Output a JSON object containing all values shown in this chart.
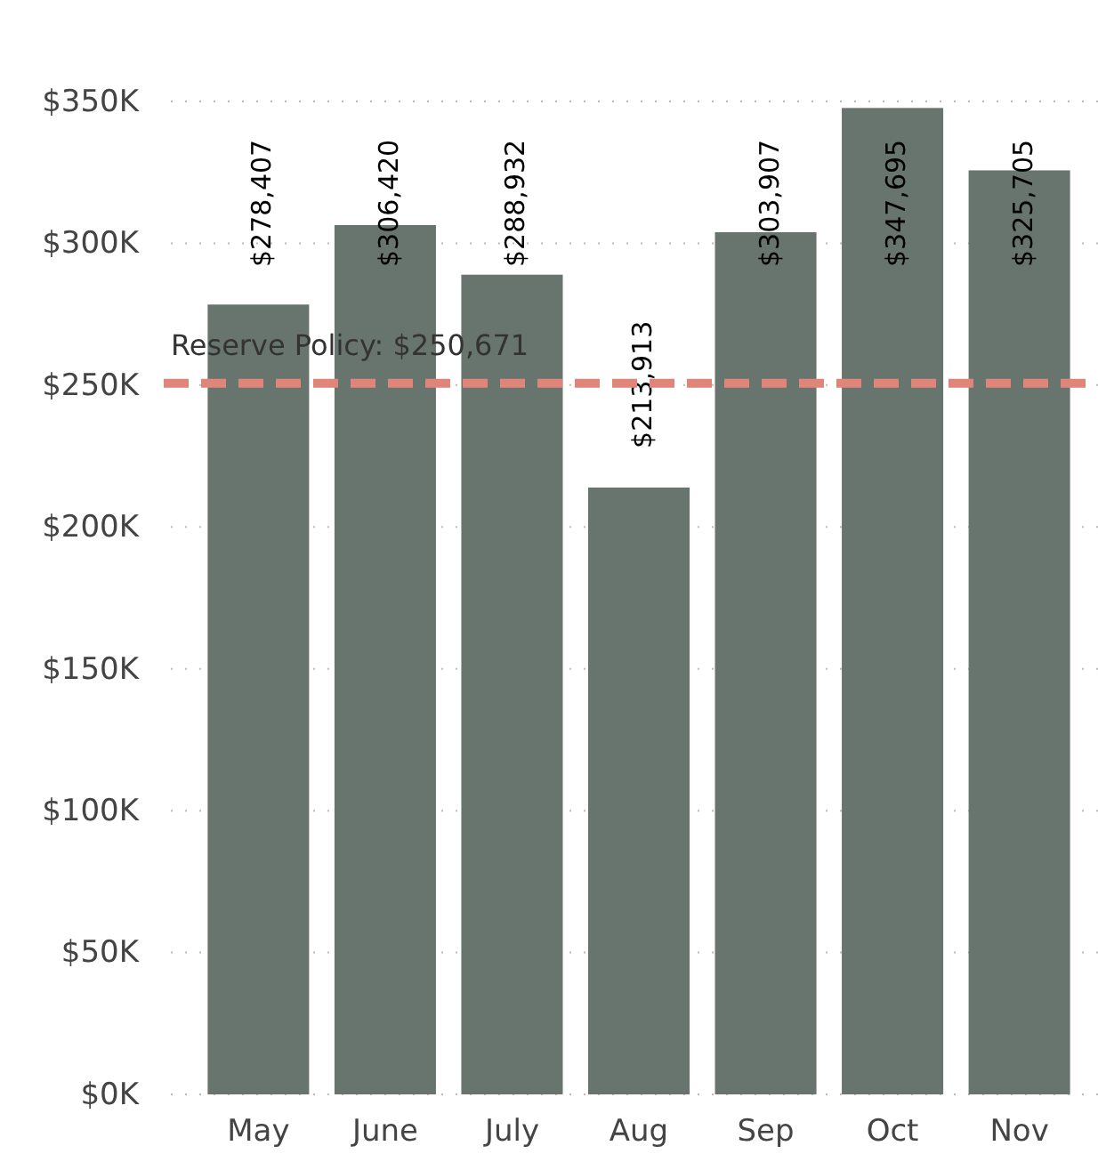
{
  "chart_data": {
    "type": "bar",
    "categories": [
      "May",
      "June",
      "July",
      "Aug",
      "Sep",
      "Oct",
      "Nov"
    ],
    "values": [
      278407,
      306420,
      288932,
      213913,
      303907,
      347695,
      325705
    ],
    "value_labels": [
      "$278,407",
      "$306,420",
      "$288,932",
      "$213,913",
      "$303,907",
      "$347,695",
      "$325,705"
    ],
    "color": "#68756f",
    "ylim": [
      0,
      350000
    ],
    "yticks": [
      {
        "value": 0,
        "label": "$0K"
      },
      {
        "value": 50000,
        "label": "$50K"
      },
      {
        "value": 100000,
        "label": "$100K"
      },
      {
        "value": 150000,
        "label": "$150K"
      },
      {
        "value": 200000,
        "label": "$200K"
      },
      {
        "value": 250000,
        "label": "$250K"
      },
      {
        "value": 300000,
        "label": "$300K"
      },
      {
        "value": 350000,
        "label": "$350K"
      }
    ],
    "grid": "y",
    "ref_lines": [
      {
        "axis": "y",
        "value": 250671,
        "label": "Reserve Policy: $250,671",
        "color": "#e0857a",
        "line_style": "dashed"
      }
    ]
  }
}
